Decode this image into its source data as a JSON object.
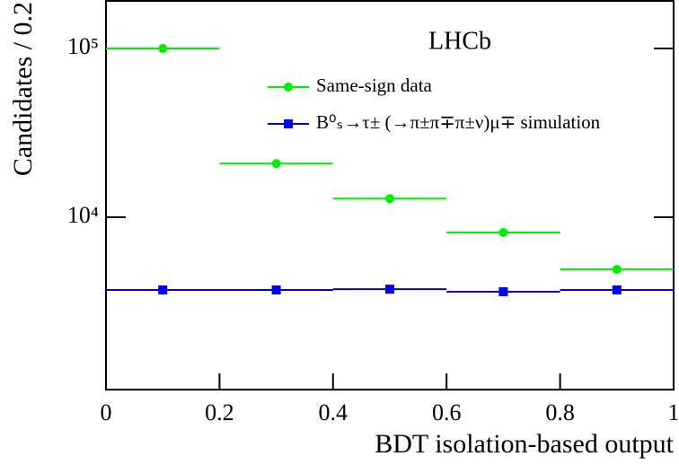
{
  "chart_data": {
    "type": "histogram",
    "ylabel": "Candidates / 0.2",
    "xlabel": "BDT isolation-based output",
    "annotation": "LHCb",
    "bins": [
      0,
      0.2,
      0.4,
      0.6,
      0.8,
      1
    ],
    "series": [
      {
        "name": "Same-sign data",
        "color": "#00ee00",
        "marker": "circle",
        "values": [
          100000,
          20800,
          12900,
          8130,
          4910
        ]
      },
      {
        "name": "B⁰ₛ→τ± (→π±π∓π±ν)μ∓ simulation",
        "color": "#0000ee",
        "marker": "square",
        "values": [
          3710,
          3710,
          3750,
          3620,
          3710
        ]
      }
    ],
    "xlim": [
      0,
      1
    ],
    "xticks": [
      0,
      0.2,
      0.4,
      0.6,
      0.8,
      1
    ],
    "ylim": [
      953,
      191500
    ],
    "log_y": true,
    "yticks": [
      {
        "value": 10000,
        "label": "10⁴"
      },
      {
        "value": 100000,
        "label": "10⁵"
      }
    ]
  }
}
